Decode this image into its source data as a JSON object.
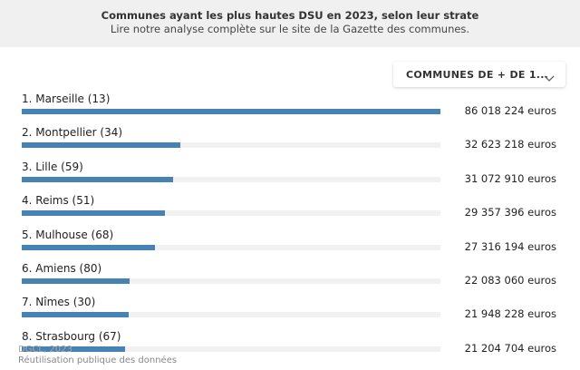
{
  "header": {
    "title": "Communes ayant les plus hautes DSU en 2023, selon leur strate",
    "subtitle": "Lire notre analyse complète sur le site de la Gazette des communes."
  },
  "filter": {
    "selected": "COMMUNES DE + DE 1...",
    "icon": "chevron-down-icon"
  },
  "colors": {
    "bar": "#4682b4",
    "track": "#f1f1f1",
    "header_bg": "#f0f0f0"
  },
  "rows": [
    {
      "label": "1. Marseille (13)",
      "value_text": "86 018 224 euros"
    },
    {
      "label": "2. Montpellier (34)",
      "value_text": "32 623 218 euros"
    },
    {
      "label": "3. Lille (59)",
      "value_text": "31 072 910 euros"
    },
    {
      "label": "4. Reims (51)",
      "value_text": "29 357 396 euros"
    },
    {
      "label": "5. Mulhouse (68)",
      "value_text": "27 316 194 euros"
    },
    {
      "label": "6. Amiens (80)",
      "value_text": "22 083 060 euros"
    },
    {
      "label": "7. Nîmes (30)",
      "value_text": "21 948 228 euros"
    },
    {
      "label": "8. Strasbourg (67)",
      "value_text": "21 204 704 euros"
    }
  ],
  "chart_data": {
    "type": "bar",
    "orientation": "horizontal",
    "title": "Communes ayant les plus hautes DSU en 2023, selon leur strate",
    "subtitle": "Lire notre analyse complète sur le site de la Gazette des communes.",
    "unit": "euros",
    "categories": [
      "1. Marseille (13)",
      "2. Montpellier (34)",
      "3. Lille (59)",
      "4. Reims (51)",
      "5. Mulhouse (68)",
      "6. Amiens (80)",
      "7. Nîmes (30)",
      "8. Strasbourg (67)"
    ],
    "values": [
      86018224,
      32623218,
      31072910,
      29357396,
      27316194,
      22083060,
      21948228,
      21204704
    ],
    "xlim": [
      0,
      86018224
    ]
  },
  "footer": {
    "source": "DGCL, 2023",
    "reuse": "Réutilisation publique des données"
  }
}
